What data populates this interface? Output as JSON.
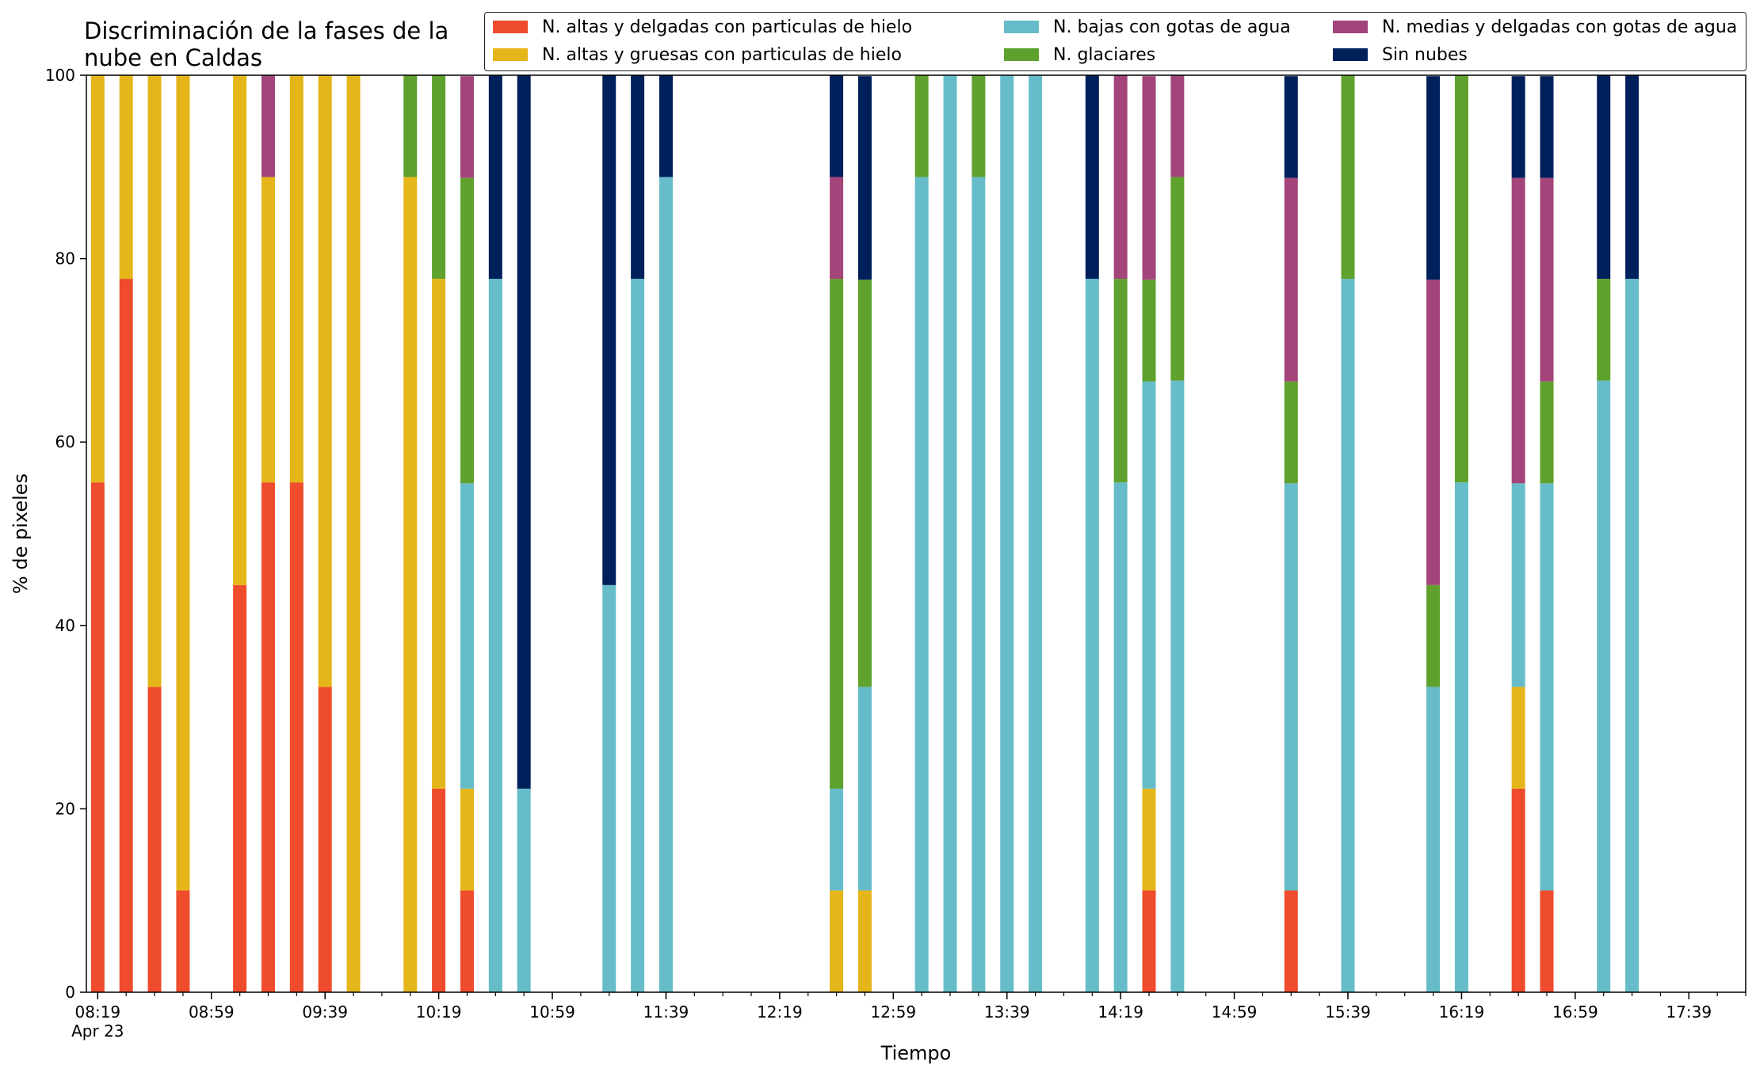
{
  "chart_data": {
    "type": "bar",
    "stacked": true,
    "title": "Discriminación de la fases de la\nnube en Caldas",
    "xlabel": "Tiempo",
    "ylabel": "% de pixeles",
    "ylim": [
      0,
      100
    ],
    "yticks": [
      0,
      20,
      40,
      60,
      80,
      100
    ],
    "x_tick_labels": [
      "08:19",
      "08:59",
      "09:39",
      "10:19",
      "10:59",
      "11:39",
      "12:19",
      "12:59",
      "13:39",
      "14:19",
      "14:59",
      "15:39",
      "16:19",
      "16:59",
      "17:39"
    ],
    "x_date_label": "Apr 23",
    "xlim": [
      "08:15",
      "17:59"
    ],
    "grid": false,
    "legend_position": "top-right",
    "series": [
      {
        "name": "N. altas y delgadas con particulas de hielo",
        "color": "#ee4c2c"
      },
      {
        "name": "N. altas y gruesas con particulas de hielo",
        "color": "#e5b61a"
      },
      {
        "name": "N. bajas con gotas de agua",
        "color": "#66bdc9"
      },
      {
        "name": "N. glaciares",
        "color": "#5fa12d"
      },
      {
        "name": "N. medias y delgadas con gotas de agua",
        "color": "#a3457a"
      },
      {
        "name": "Sin nubes",
        "color": "#00205b"
      }
    ],
    "x": [
      "08:19",
      "08:29",
      "08:39",
      "08:49",
      "09:09",
      "09:19",
      "09:29",
      "09:39",
      "09:49",
      "10:09",
      "10:19",
      "10:29",
      "10:39",
      "10:49",
      "11:19",
      "11:29",
      "11:39",
      "12:39",
      "12:49",
      "13:09",
      "13:19",
      "13:29",
      "13:39",
      "13:49",
      "14:09",
      "14:19",
      "14:29",
      "14:39",
      "15:19",
      "15:39",
      "16:09",
      "16:19",
      "16:39",
      "16:49",
      "17:09",
      "17:19"
    ],
    "values": [
      [
        55.6,
        44.4,
        0,
        0,
        0,
        0
      ],
      [
        77.8,
        22.2,
        0,
        0,
        0,
        0
      ],
      [
        33.3,
        66.7,
        0,
        0,
        0,
        0
      ],
      [
        11.1,
        88.9,
        0,
        0,
        0,
        0
      ],
      [
        44.4,
        55.6,
        0,
        0,
        0,
        0
      ],
      [
        55.6,
        33.3,
        0,
        0,
        11.1,
        0
      ],
      [
        55.6,
        44.4,
        0,
        0,
        0,
        0
      ],
      [
        33.3,
        66.7,
        0,
        0,
        0,
        0
      ],
      [
        0,
        100,
        0,
        0,
        0,
        0
      ],
      [
        0,
        88.9,
        0,
        11.1,
        0,
        0
      ],
      [
        22.2,
        55.6,
        0,
        22.2,
        0,
        0
      ],
      [
        11.1,
        11.1,
        33.3,
        33.3,
        11.1,
        0
      ],
      [
        0,
        0,
        77.8,
        0,
        0,
        22.2
      ],
      [
        0,
        0,
        22.2,
        0,
        0,
        77.8
      ],
      [
        0,
        0,
        44.4,
        0,
        0,
        55.6
      ],
      [
        0,
        0,
        77.8,
        0,
        0,
        22.2
      ],
      [
        0,
        0,
        88.9,
        0,
        0,
        11.1
      ],
      [
        0,
        11.1,
        11.1,
        55.6,
        11.1,
        11.1
      ],
      [
        0,
        11.1,
        22.2,
        44.4,
        0,
        22.2
      ],
      [
        0,
        0,
        88.9,
        11.1,
        0,
        0
      ],
      [
        0,
        0,
        100,
        0,
        0,
        0
      ],
      [
        0,
        0,
        88.9,
        11.1,
        0,
        0
      ],
      [
        0,
        0,
        100,
        0,
        0,
        0
      ],
      [
        0,
        0,
        100,
        0,
        0,
        0
      ],
      [
        0,
        0,
        77.8,
        0,
        0,
        22.2
      ],
      [
        0,
        0,
        55.6,
        22.2,
        22.2,
        0
      ],
      [
        11.1,
        11.1,
        44.4,
        11.1,
        22.2,
        0
      ],
      [
        0,
        0,
        66.7,
        22.2,
        11.1,
        0
      ],
      [
        11.1,
        0,
        44.4,
        11.1,
        22.2,
        11.1
      ],
      [
        0,
        0,
        77.8,
        22.2,
        0,
        0
      ],
      [
        0,
        0,
        33.3,
        11.1,
        33.3,
        22.2
      ],
      [
        0,
        0,
        55.6,
        44.4,
        0,
        0
      ],
      [
        22.2,
        11.1,
        22.2,
        0,
        33.3,
        11.1
      ],
      [
        11.1,
        0,
        44.4,
        11.1,
        22.2,
        11.1
      ],
      [
        0,
        0,
        66.7,
        11.1,
        0,
        22.2
      ],
      [
        0,
        0,
        77.8,
        0,
        0,
        22.2
      ]
    ]
  }
}
